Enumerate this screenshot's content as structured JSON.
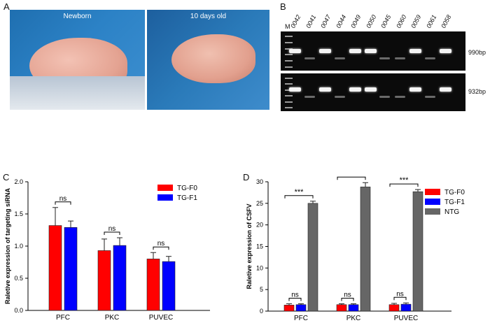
{
  "panels": {
    "A": {
      "letter": "A",
      "photo_left_caption": "Newborn",
      "photo_right_caption": "10 days old"
    },
    "B": {
      "letter": "B",
      "marker_label": "M",
      "lanes": [
        "0042",
        "0041",
        "0047",
        "0044",
        "0049",
        "0050",
        "0045",
        "0060",
        "0059",
        "0061",
        "0058"
      ],
      "top_gel": {
        "band_label": "990bp",
        "strong": [
          true,
          false,
          true,
          false,
          true,
          true,
          false,
          false,
          true,
          false,
          true
        ]
      },
      "bottom_gel": {
        "band_label": "932bp",
        "strong": [
          true,
          false,
          true,
          false,
          true,
          true,
          false,
          false,
          true,
          false,
          true
        ]
      }
    },
    "C": {
      "letter": "C"
    },
    "D": {
      "letter": "D"
    }
  },
  "chart_data": [
    {
      "type": "bar",
      "panel": "C",
      "categories": [
        "PFC",
        "PKC",
        "PUVEC"
      ],
      "series": [
        {
          "name": "TG-F0",
          "color": "#ff0000",
          "values": [
            1.32,
            0.93,
            0.8
          ],
          "errors": [
            0.28,
            0.18,
            0.1
          ]
        },
        {
          "name": "TG-F1",
          "color": "#0000ff",
          "values": [
            1.29,
            1.01,
            0.76
          ],
          "errors": [
            0.1,
            0.12,
            0.08
          ]
        }
      ],
      "ylabel": "Raletive expression of targeting siRNA",
      "ylim": [
        0,
        2.0
      ],
      "yticks": [
        "0.0",
        "0.5",
        "1.0",
        "1.5",
        "2.0"
      ],
      "annotations": [
        "ns",
        "ns",
        "ns"
      ],
      "legend_position": "top-right"
    },
    {
      "type": "bar",
      "panel": "D",
      "categories": [
        "PFC",
        "PKC",
        "PUVEC"
      ],
      "series": [
        {
          "name": "TG-F0",
          "color": "#ff0000",
          "values": [
            1.4,
            1.5,
            1.5
          ],
          "errors": [
            0.3,
            0.2,
            0.3
          ]
        },
        {
          "name": "TG-F1",
          "color": "#0000ff",
          "values": [
            1.5,
            1.5,
            1.6
          ],
          "errors": [
            0.2,
            0.2,
            0.3
          ]
        },
        {
          "name": "NTG",
          "color": "#666666",
          "values": [
            25.0,
            28.8,
            27.7
          ],
          "errors": [
            0.5,
            1.0,
            0.5
          ]
        }
      ],
      "ylabel": "Raletive expression of CSFV",
      "ylim": [
        0,
        30
      ],
      "yticks": [
        "0",
        "5",
        "10",
        "15",
        "20",
        "25",
        "30"
      ],
      "annotations_ns": [
        "ns",
        "ns",
        "ns"
      ],
      "annotations_sig": [
        "***",
        "***",
        "***"
      ],
      "legend_position": "top-right"
    }
  ]
}
